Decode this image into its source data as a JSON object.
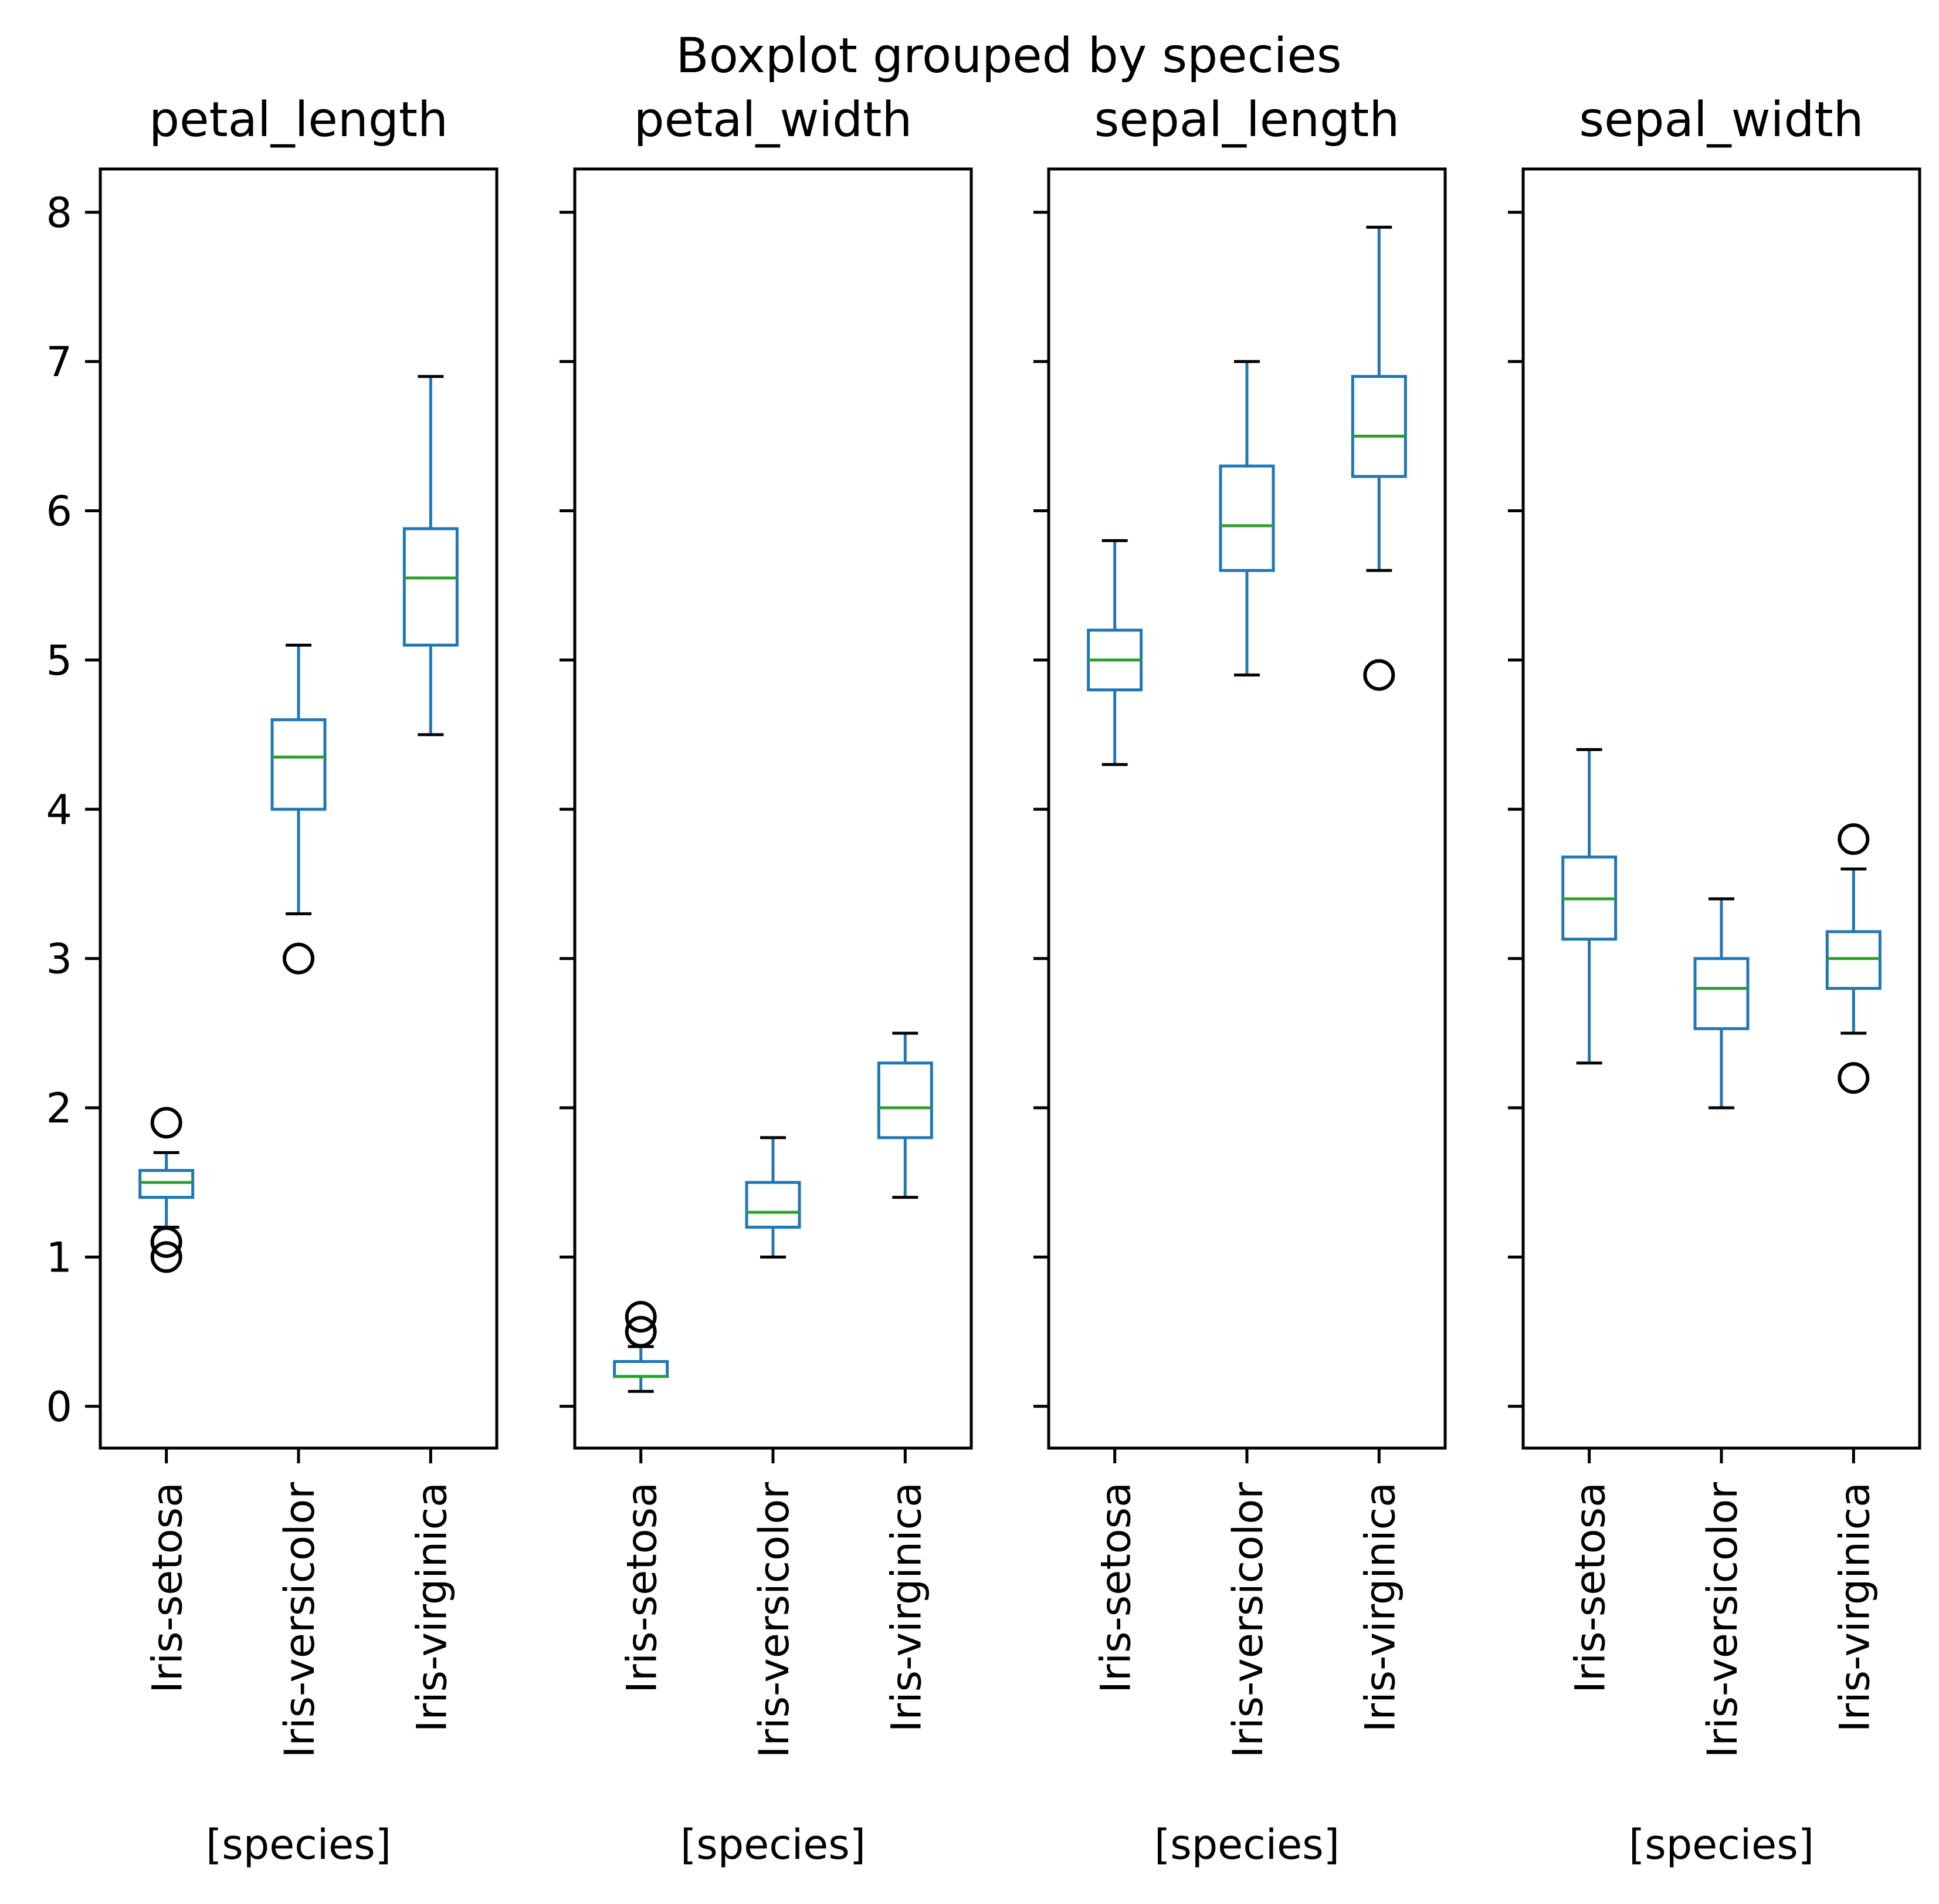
{
  "chart_data": {
    "type": "boxplot",
    "suptitle": "Boxplot grouped by species",
    "shared_y": true,
    "ylim": [
      -0.28,
      8.29
    ],
    "yticks": [
      0,
      1,
      2,
      3,
      4,
      5,
      6,
      7,
      8
    ],
    "categories": [
      "Iris-setosa",
      "Iris-versicolor",
      "Iris-virginica"
    ],
    "xlabel": "[species]",
    "grid": false,
    "colors": {
      "box": "#1f77b4",
      "median": "#2ca02c",
      "cap": "#000000",
      "flier": "#000000",
      "axes": "#000000"
    },
    "panels": [
      {
        "title": "petal_length",
        "boxes": [
          {
            "category": "Iris-setosa",
            "whislo": 1.2,
            "q1": 1.4,
            "med": 1.5,
            "q3": 1.58,
            "whishi": 1.7,
            "fliers": [
              1.0,
              1.1,
              1.9
            ]
          },
          {
            "category": "Iris-versicolor",
            "whislo": 3.3,
            "q1": 4.0,
            "med": 4.35,
            "q3": 4.6,
            "whishi": 5.1,
            "fliers": [
              3.0
            ]
          },
          {
            "category": "Iris-virginica",
            "whislo": 4.5,
            "q1": 5.1,
            "med": 5.55,
            "q3": 5.88,
            "whishi": 6.9,
            "fliers": []
          }
        ]
      },
      {
        "title": "petal_width",
        "boxes": [
          {
            "category": "Iris-setosa",
            "whislo": 0.1,
            "q1": 0.2,
            "med": 0.2,
            "q3": 0.3,
            "whishi": 0.4,
            "fliers": [
              0.5,
              0.6
            ]
          },
          {
            "category": "Iris-versicolor",
            "whislo": 1.0,
            "q1": 1.2,
            "med": 1.3,
            "q3": 1.5,
            "whishi": 1.8,
            "fliers": []
          },
          {
            "category": "Iris-virginica",
            "whislo": 1.4,
            "q1": 1.8,
            "med": 2.0,
            "q3": 2.3,
            "whishi": 2.5,
            "fliers": []
          }
        ]
      },
      {
        "title": "sepal_length",
        "boxes": [
          {
            "category": "Iris-setosa",
            "whislo": 4.3,
            "q1": 4.8,
            "med": 5.0,
            "q3": 5.2,
            "whishi": 5.8,
            "fliers": []
          },
          {
            "category": "Iris-versicolor",
            "whislo": 4.9,
            "q1": 5.6,
            "med": 5.9,
            "q3": 6.3,
            "whishi": 7.0,
            "fliers": []
          },
          {
            "category": "Iris-virginica",
            "whislo": 5.6,
            "q1": 6.23,
            "med": 6.5,
            "q3": 6.9,
            "whishi": 7.9,
            "fliers": [
              4.9
            ]
          }
        ]
      },
      {
        "title": "sepal_width",
        "boxes": [
          {
            "category": "Iris-setosa",
            "whislo": 2.3,
            "q1": 3.13,
            "med": 3.4,
            "q3": 3.68,
            "whishi": 4.4,
            "fliers": []
          },
          {
            "category": "Iris-versicolor",
            "whislo": 2.0,
            "q1": 2.53,
            "med": 2.8,
            "q3": 3.0,
            "whishi": 3.4,
            "fliers": []
          },
          {
            "category": "Iris-virginica",
            "whislo": 2.5,
            "q1": 2.8,
            "med": 3.0,
            "q3": 3.18,
            "whishi": 3.6,
            "fliers": [
              2.2,
              3.8
            ]
          }
        ]
      }
    ]
  }
}
